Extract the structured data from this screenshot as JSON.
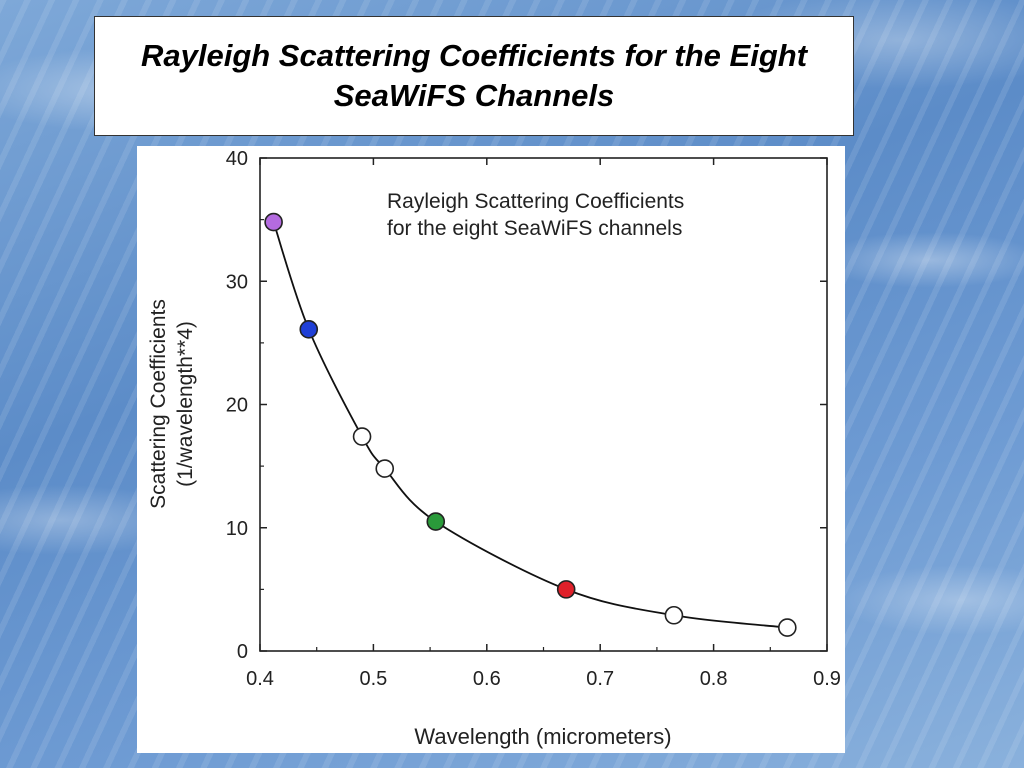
{
  "slide": {
    "title": "Rayleigh Scattering Coefficients for the Eight SeaWiFS Channels"
  },
  "chart_data": {
    "type": "line",
    "title": "Rayleigh Scattering Coefficients\nfor the eight SeaWiFS channels",
    "xlabel": "Wavelength (micrometers)",
    "ylabel": "Scattering Coefficients\n(1/wavelength**4)",
    "xlim": [
      0.4,
      0.9
    ],
    "ylim": [
      0,
      40
    ],
    "x_ticks": [
      0.4,
      0.5,
      0.6,
      0.7,
      0.8,
      0.9
    ],
    "x_tick_labels": [
      "0.4",
      "0.5",
      "0.6",
      "0.7",
      "0.8",
      "0.9"
    ],
    "y_ticks": [
      0,
      10,
      20,
      30,
      40
    ],
    "y_tick_labels": [
      "0",
      "10",
      "20",
      "30",
      "40"
    ],
    "grid": false,
    "series": [
      {
        "x": [
          0.412,
          0.443,
          0.49,
          0.51,
          0.555,
          0.67,
          0.765,
          0.865
        ],
        "y": [
          34.8,
          26.1,
          17.4,
          14.8,
          10.5,
          5.0,
          2.9,
          1.9
        ],
        "marker_colors": [
          "#b46be0",
          "#1f3fd6",
          "#ffffff",
          "#ffffff",
          "#2a9a3a",
          "#e0202a",
          "#ffffff",
          "#ffffff"
        ]
      }
    ]
  }
}
